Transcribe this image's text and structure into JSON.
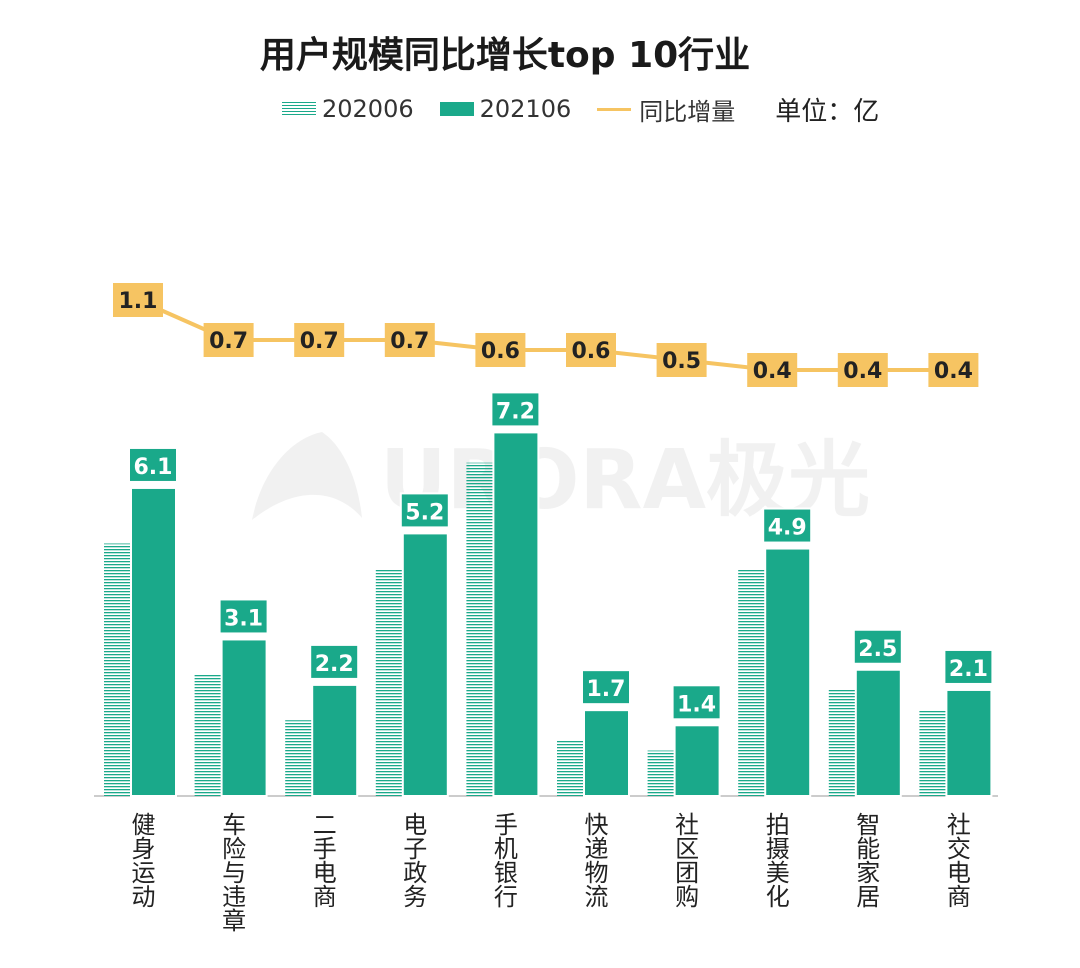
{
  "chart_data": {
    "type": "bar",
    "title": "用户规模同比增长top 10行业",
    "unit_label": "单位：亿",
    "categories": [
      "健身运动",
      "车险与违章",
      "二手电商",
      "电子政务",
      "手机银行",
      "快递物流",
      "社区团购",
      "拍摄美化",
      "智能家居",
      "社交电商"
    ],
    "series": [
      {
        "name": "202006",
        "style": "hatched",
        "color": "#1aa98a",
        "values": [
          5.0,
          2.4,
          1.5,
          4.5,
          6.6,
          1.1,
          0.9,
          4.5,
          2.1,
          1.7
        ]
      },
      {
        "name": "202106",
        "style": "solid",
        "color": "#1aa98a",
        "values": [
          6.1,
          3.1,
          2.2,
          5.2,
          7.2,
          1.7,
          1.4,
          4.9,
          2.5,
          2.1
        ]
      }
    ],
    "line_series": {
      "name": "同比增量",
      "color": "#f6c462",
      "values": [
        1.1,
        0.7,
        0.7,
        0.7,
        0.6,
        0.6,
        0.5,
        0.4,
        0.4,
        0.4
      ]
    },
    "bar_labels": [
      "6.1",
      "3.1",
      "2.2",
      "5.2",
      "7.2",
      "1.7",
      "1.4",
      "4.9",
      "2.5",
      "2.1"
    ],
    "line_labels": [
      "1.1",
      "0.7",
      "0.7",
      "0.7",
      "0.6",
      "0.6",
      "0.5",
      "0.4",
      "0.4",
      "0.4"
    ],
    "legend_position": "top",
    "grid": false
  },
  "watermark": "URORA极光"
}
